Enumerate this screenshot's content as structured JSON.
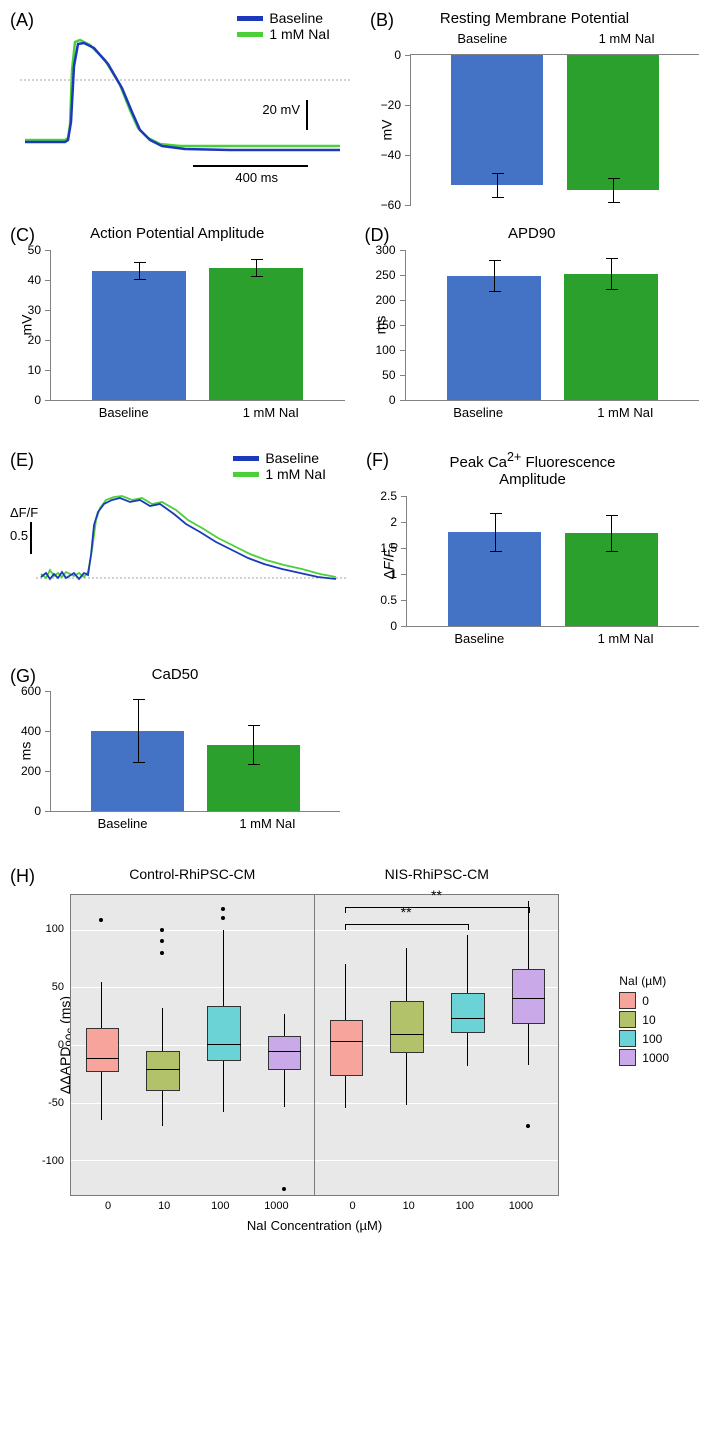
{
  "colors": {
    "baseline_bar": "#4472c4",
    "nai_bar": "#2ca02c",
    "baseline_trace": "#1c39bb",
    "nai_trace": "#4cd038",
    "axis": "#828282",
    "boxplot_bg": "#e8e8e8",
    "box_fill": {
      "0": "#f6a49c",
      "10": "#b2c26b",
      "100": "#6bd2d6",
      "1000": "#caa9e8"
    }
  },
  "labels": {
    "baseline": "Baseline",
    "nai": "1 mM NaI",
    "mV": "mV",
    "ms": "ms",
    "dff": "ΔF/F",
    "dff0": "ΔF/F₀"
  },
  "panel_A": {
    "label": "(A)",
    "type": "line-trace",
    "legend": [
      "Baseline",
      "1 mM NaI"
    ],
    "scale_v": "20 mV",
    "scale_h": "400 ms"
  },
  "panel_B": {
    "label": "(B)",
    "title": "Resting Membrane Potential",
    "type": "bar",
    "y_label": "mV",
    "y_ticks": [
      0,
      -20,
      -40,
      -60
    ],
    "ylim": [
      -60,
      0
    ],
    "categories": [
      "Baseline",
      "1 mM NaI"
    ],
    "values": [
      -52,
      -54
    ],
    "err": [
      5,
      5
    ]
  },
  "panel_C": {
    "label": "(C)",
    "title": "Action Potential Amplitude",
    "type": "bar",
    "y_label": "mV",
    "y_ticks": [
      0,
      10,
      20,
      30,
      40,
      50
    ],
    "ylim": [
      0,
      50
    ],
    "categories": [
      "Baseline",
      "1 mM NaI"
    ],
    "values": [
      43,
      44
    ],
    "err": [
      3,
      3
    ]
  },
  "panel_D": {
    "label": "(D)",
    "title": "APD90",
    "type": "bar",
    "y_label": "ms",
    "y_ticks": [
      0,
      50,
      100,
      150,
      200,
      250,
      300
    ],
    "ylim": [
      0,
      300
    ],
    "categories": [
      "Baseline",
      "1 mM NaI"
    ],
    "values": [
      248,
      252
    ],
    "err": [
      32,
      32
    ]
  },
  "panel_E": {
    "label": "(E)",
    "type": "line-trace",
    "legend": [
      "Baseline",
      "1 mM NaI"
    ],
    "scale_v": "0.5",
    "scale_v_label": "ΔF/F"
  },
  "panel_F": {
    "label": "(F)",
    "title": "Peak Ca²⁺ Fluorescence Amplitude",
    "type": "bar",
    "y_label": "ΔF/F₀",
    "y_ticks": [
      0,
      0.5,
      1,
      1.5,
      2,
      2.5
    ],
    "ylim": [
      0,
      2.5
    ],
    "categories": [
      "Baseline",
      "1 mM NaI"
    ],
    "values": [
      1.8,
      1.78
    ],
    "err": [
      0.38,
      0.35
    ]
  },
  "panel_G": {
    "label": "(G)",
    "title": "CaD50",
    "type": "bar",
    "y_label": "ms",
    "y_ticks": [
      0,
      200,
      400,
      600
    ],
    "ylim": [
      0,
      600
    ],
    "categories": [
      "Baseline",
      "1 mM NaI"
    ],
    "values": [
      400,
      330
    ],
    "err": [
      160,
      100
    ]
  },
  "panel_H": {
    "label": "(H)",
    "type": "boxplot",
    "y_label": "ΔΔAPD₉₀c (ms)",
    "x_label": "NaI Concentration (µM)",
    "y_ticks": [
      -100,
      -50,
      0,
      50,
      100
    ],
    "ylim": [
      -130,
      130
    ],
    "panels": [
      {
        "title": "Control-RhiPSC-CM",
        "x_categories": [
          "0",
          "10",
          "100",
          "1000"
        ],
        "boxes": [
          {
            "q1": -22,
            "median": -10,
            "q3": 15,
            "lw": -65,
            "uw": 55,
            "outliers": [
              108
            ],
            "color": "#f6a49c"
          },
          {
            "q1": -38,
            "median": -20,
            "q3": -5,
            "lw": -70,
            "uw": 32,
            "outliers": [
              80,
              90,
              100
            ],
            "color": "#b2c26b"
          },
          {
            "q1": -12,
            "median": 2,
            "q3": 34,
            "lw": -58,
            "uw": 100,
            "outliers": [
              118,
              110
            ],
            "color": "#6bd2d6"
          },
          {
            "q1": -20,
            "median": -4,
            "q3": 8,
            "lw": -54,
            "uw": 27,
            "outliers": [
              -125
            ],
            "color": "#caa9e8"
          }
        ]
      },
      {
        "title": "NIS-RhiPSC-CM",
        "x_categories": [
          "0",
          "10",
          "100",
          "1000"
        ],
        "boxes": [
          {
            "q1": -25,
            "median": 4,
            "q3": 22,
            "lw": -55,
            "uw": 70,
            "outliers": [],
            "color": "#f6a49c"
          },
          {
            "q1": -5,
            "median": 10,
            "q3": 38,
            "lw": -52,
            "uw": 84,
            "outliers": [],
            "color": "#b2c26b"
          },
          {
            "q1": 12,
            "median": 24,
            "q3": 45,
            "lw": -18,
            "uw": 95,
            "outliers": [],
            "color": "#6bd2d6"
          },
          {
            "q1": 20,
            "median": 42,
            "q3": 66,
            "lw": -17,
            "uw": 125,
            "outliers": [
              -70
            ],
            "color": "#caa9e8"
          }
        ],
        "significance": [
          {
            "from": 0,
            "to": 2,
            "label": "**",
            "y": 105
          },
          {
            "from": 0,
            "to": 3,
            "label": "**",
            "y": 120
          }
        ]
      }
    ],
    "legend_title": "NaI (µM)",
    "legend": [
      {
        "label": "0",
        "color": "#f6a49c"
      },
      {
        "label": "10",
        "color": "#b2c26b"
      },
      {
        "label": "100",
        "color": "#6bd2d6"
      },
      {
        "label": "1000",
        "color": "#caa9e8"
      }
    ]
  }
}
